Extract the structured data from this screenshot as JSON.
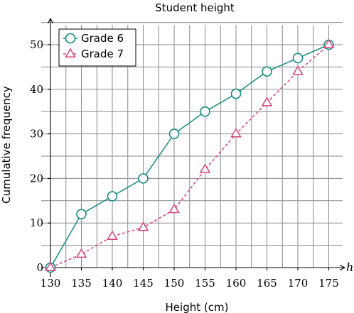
{
  "chart_data": {
    "type": "line",
    "title": "Student height",
    "xlabel": "Height (cm)",
    "ylabel": "Cumulative frequency",
    "x_axis_variable": "h",
    "x": [
      130,
      135,
      140,
      145,
      150,
      155,
      160,
      165,
      170,
      175
    ],
    "xlim": [
      128.5,
      177
    ],
    "ylim": [
      0,
      55
    ],
    "xticks": [
      130,
      135,
      140,
      145,
      150,
      155,
      160,
      165,
      170,
      175
    ],
    "yticks": [
      0,
      10,
      20,
      30,
      40,
      50
    ],
    "grid": true,
    "legend_position": "top-left",
    "series": [
      {
        "name": "Grade 6",
        "values": [
          0,
          12,
          16,
          20,
          30,
          35,
          39,
          44,
          47,
          50
        ],
        "color": "#138b84",
        "marker": "circle",
        "line_style": "solid"
      },
      {
        "name": "Grade 7",
        "values": [
          0,
          3,
          7,
          9,
          13,
          22,
          30,
          37,
          44,
          50
        ],
        "color": "#d6427a",
        "marker": "triangle",
        "line_style": "dashed"
      }
    ]
  }
}
